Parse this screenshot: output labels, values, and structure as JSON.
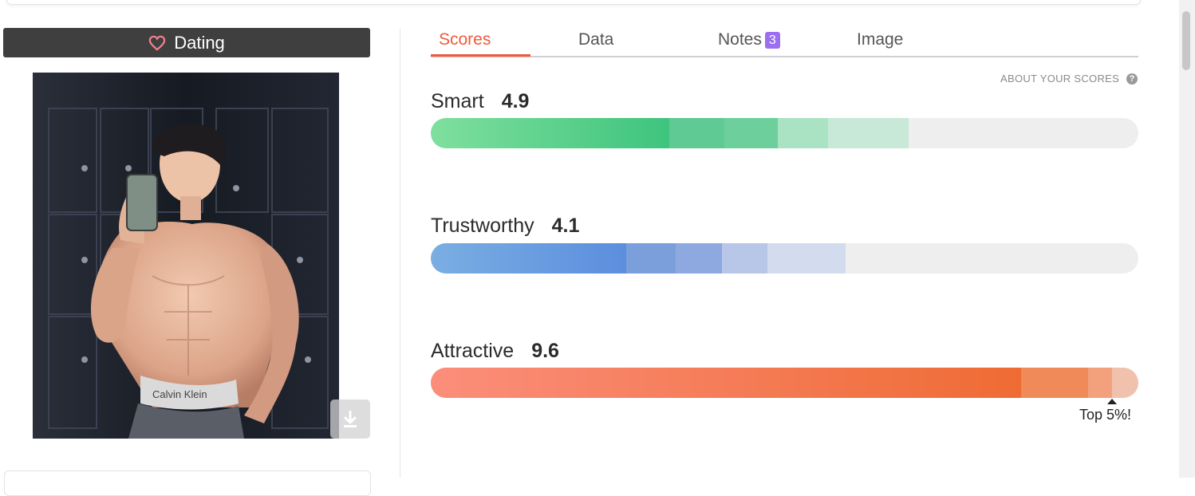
{
  "mode": {
    "label": "Dating",
    "icon": "heart-icon"
  },
  "photo": {
    "waistband_text": "Calvin Klein"
  },
  "tabs": [
    {
      "label": "Scores",
      "active": true
    },
    {
      "label": "Data",
      "active": false
    },
    {
      "label": "Notes",
      "badge": "3",
      "active": false
    },
    {
      "label": "Image",
      "active": false
    }
  ],
  "about_scores": {
    "label": "ABOUT YOUR SCORES",
    "icon": "help-icon"
  },
  "scores": [
    {
      "name": "Smart",
      "value": "4.9",
      "colors": [
        "#7fdf9e",
        "#3ec47e",
        "#5fca94",
        "#6dcf9c",
        "#a9e3c4",
        "#c8e8d8"
      ]
    },
    {
      "name": "Trustworthy",
      "value": "4.1",
      "colors": [
        "#7aaee2",
        "#5b8ede",
        "#7b9fdb",
        "#8ea9df",
        "#b8c6e8",
        "#d3dcee"
      ]
    },
    {
      "name": "Attractive",
      "value": "9.6",
      "colors": [
        "#fb8e7b",
        "#ef6b34",
        "#f08a58",
        "#f2a17c",
        "#f0c2ae"
      ]
    }
  ],
  "highlight": "Top 5%!"
}
